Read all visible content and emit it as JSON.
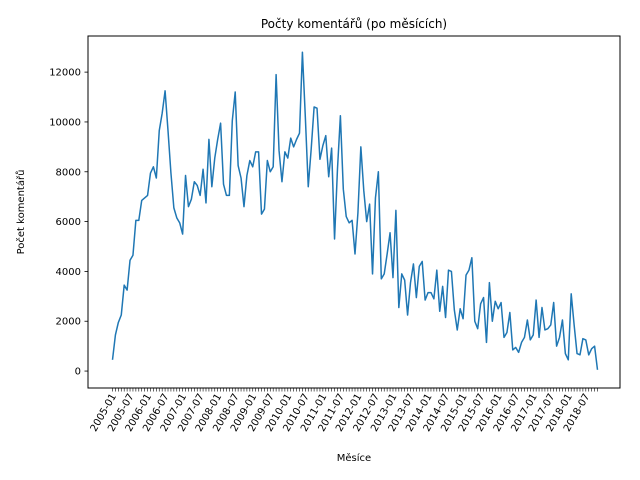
{
  "chart_data": {
    "type": "line",
    "title": "Počty komentářů (po měsících)",
    "xlabel": "Měsíce",
    "ylabel": "Počet komentářů",
    "ylim": [
      -680,
      13450
    ],
    "yticks": [
      0,
      2000,
      4000,
      6000,
      8000,
      10000,
      12000
    ],
    "x_start": "2005-01",
    "x_end": "2018-09",
    "xtick_labels": [
      "2005-01",
      "2005-07",
      "2006-01",
      "2006-07",
      "2007-01",
      "2007-07",
      "2008-01",
      "2008-07",
      "2009-01",
      "2009-07",
      "2010-01",
      "2010-07",
      "2011-01",
      "2011-07",
      "2012-01",
      "2012-07",
      "2013-01",
      "2013-07",
      "2014-01",
      "2014-07",
      "2015-01",
      "2015-07",
      "2016-01",
      "2016-07",
      "2017-01",
      "2017-07",
      "2018-01",
      "2018-07"
    ],
    "grid": false,
    "color": "#1f77b4",
    "series": [
      {
        "name": "",
        "values": [
          450,
          1450,
          1950,
          2250,
          3450,
          3250,
          4450,
          4650,
          6050,
          6050,
          6850,
          6950,
          7050,
          7950,
          8200,
          7750,
          9650,
          10350,
          11250,
          9650,
          7950,
          6550,
          6150,
          5950,
          5500,
          7850,
          6600,
          6900,
          7600,
          7450,
          7050,
          8100,
          6750,
          9300,
          7400,
          8550,
          9300,
          9950,
          7500,
          7050,
          7050,
          10050,
          11200,
          8250,
          7750,
          6600,
          7850,
          8450,
          8200,
          8800,
          8800,
          6300,
          6500,
          8450,
          8000,
          8200,
          11900,
          8850,
          7600,
          8800,
          8550,
          9350,
          9000,
          9300,
          9550,
          12800,
          10200,
          7400,
          8900,
          10600,
          10550,
          8500,
          9050,
          9450,
          7800,
          8950,
          5300,
          8100,
          10250,
          7300,
          6200,
          5950,
          6050,
          4700,
          6350,
          9000,
          7250,
          6000,
          6700,
          3900,
          6950,
          8000,
          3700,
          3900,
          4700,
          5550,
          3750,
          6450,
          2550,
          3900,
          3650,
          2250,
          3550,
          4300,
          2950,
          4200,
          4400,
          2850,
          3150,
          3150,
          2900,
          4050,
          2400,
          3400,
          2150,
          4050,
          4000,
          2450,
          1650,
          2500,
          2100,
          3850,
          4050,
          4550,
          2000,
          1700,
          2700,
          2950,
          1150,
          3550,
          2000,
          2800,
          2500,
          2750,
          1350,
          1550,
          2350,
          850,
          950,
          750,
          1150,
          1350,
          2050,
          1250,
          1450,
          2850,
          1350,
          2550,
          1650,
          1700,
          1850,
          2750,
          1000,
          1350,
          2050,
          700,
          450,
          3100,
          1850,
          700,
          650,
          1300,
          1250,
          650,
          900,
          1000,
          50
        ]
      }
    ]
  }
}
